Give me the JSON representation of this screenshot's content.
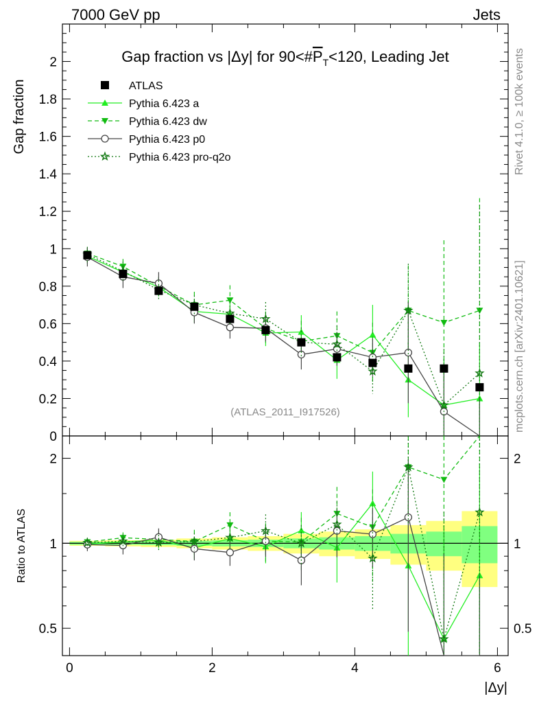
{
  "header": {
    "left": "7000 GeV pp",
    "right": "Jets"
  },
  "side_labels": {
    "rivet": "Rivet 4.1.0, ≥ 100k events",
    "site": "mcplots.cern.ch [arXiv:2401.10621]"
  },
  "chart_data": {
    "type": "line",
    "title_parts": {
      "pre": "Gap fraction vs |Δy| for 90<#",
      "over": "P",
      "sub": "T",
      "post": "<120, Leading Jet"
    },
    "xlabel": "|Δy|",
    "ylabel": "Gap fraction",
    "ratio_ylabel": "Ratio to ATLAS",
    "analysis_tag": "(ATLAS_2011_I917526)",
    "xlim": [
      -0.1,
      6.15
    ],
    "ylim": [
      0,
      2.2
    ],
    "ratio_ylim": [
      0.4,
      2.4
    ],
    "x_ticks": [
      0,
      2,
      4,
      6
    ],
    "x_tick_labels": [
      "0",
      "2",
      "4",
      "6"
    ],
    "y_ticks": [
      0,
      0.2,
      0.4,
      0.6,
      0.8,
      1,
      1.2,
      1.4,
      1.6,
      1.8,
      2
    ],
    "y_tick_labels": [
      "0",
      "0.2",
      "0.4",
      "0.6",
      "0.8",
      "1",
      "1.2",
      "1.4",
      "1.6",
      "1.8",
      "2"
    ],
    "ratio_ticks": [
      0.5,
      1,
      2
    ],
    "ratio_tick_labels": [
      "0.5",
      "1",
      "2"
    ],
    "x": [
      0.25,
      0.75,
      1.25,
      1.75,
      2.25,
      2.75,
      3.25,
      3.75,
      4.25,
      4.75,
      5.25,
      5.75
    ],
    "data": {
      "name": "ATLAS",
      "values": [
        0.965,
        0.865,
        0.775,
        0.69,
        0.625,
        0.565,
        0.5,
        0.42,
        0.39,
        0.36,
        0.36,
        0.26
      ],
      "band_inner": [
        0.012,
        0.012,
        0.015,
        0.02,
        0.025,
        0.03,
        0.04,
        0.05,
        0.06,
        0.08,
        0.1,
        0.15
      ],
      "band_outer": [
        0.02,
        0.025,
        0.03,
        0.04,
        0.05,
        0.06,
        0.08,
        0.1,
        0.12,
        0.16,
        0.2,
        0.3
      ]
    },
    "series": [
      {
        "name": "Pythia 6.423 a",
        "color": "#22ee22",
        "dash": "",
        "marker": "triangle-up",
        "values": [
          0.96,
          0.875,
          0.795,
          0.665,
          0.65,
          0.55,
          0.555,
          0.405,
          0.54,
          0.3,
          0.165,
          0.2
        ],
        "errors": [
          0.04,
          0.05,
          0.05,
          0.06,
          0.07,
          0.07,
          0.09,
          0.1,
          0.16,
          0.2,
          0.25,
          0.3
        ]
      },
      {
        "name": "Pythia 6.423 dw",
        "color": "#11bb11",
        "dash": "6,4",
        "marker": "triangle-down",
        "values": [
          0.975,
          0.905,
          0.8,
          0.7,
          0.725,
          0.575,
          0.505,
          0.535,
          0.445,
          0.67,
          0.605,
          0.67
        ],
        "errors": [
          0.03,
          0.04,
          0.05,
          0.07,
          0.08,
          0.09,
          0.11,
          0.13,
          0.16,
          0.24,
          0.44,
          0.6
        ]
      },
      {
        "name": "Pythia 6.423 p0",
        "color": "#444444",
        "dash": "",
        "marker": "circle",
        "values": [
          0.955,
          0.85,
          0.815,
          0.66,
          0.58,
          0.575,
          0.435,
          0.465,
          0.42,
          0.445,
          0.13,
          0.0
        ],
        "errors": [
          0.05,
          0.06,
          0.06,
          0.06,
          0.06,
          0.07,
          0.08,
          0.09,
          0.1,
          0.27,
          0.2,
          0.2
        ]
      },
      {
        "name": "Pythia 6.423 pro-q2o",
        "color": "#117711",
        "dash": "2,3",
        "marker": "star",
        "values": [
          0.97,
          0.88,
          0.78,
          0.7,
          0.655,
          0.625,
          0.5,
          0.49,
          0.345,
          0.67,
          0.165,
          0.335
        ],
        "errors": [
          0.04,
          0.05,
          0.05,
          0.05,
          0.06,
          0.09,
          0.08,
          0.1,
          0.12,
          0.25,
          0.3,
          0.9
        ]
      }
    ]
  }
}
